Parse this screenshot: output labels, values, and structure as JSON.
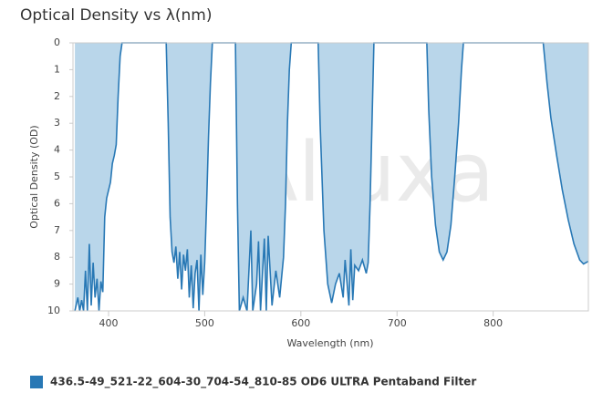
{
  "chart_data": {
    "type": "area",
    "title": "Optical Density vs λ(nm)",
    "x_label": "Wavelength (nm)",
    "y_label": "Optical Density (OD)",
    "watermark": "Alluxa",
    "xlim": [
      363,
      899
    ],
    "xticks": [
      400,
      500,
      600,
      700,
      800
    ],
    "ylim": [
      0,
      10
    ],
    "yticks": [
      0,
      1,
      2,
      3,
      4,
      5,
      6,
      7,
      8,
      9,
      10
    ],
    "y_reversed": true,
    "series": [
      {
        "name": "436.5-49_521-22_604-30_704-54_810-85 OD6 ULTRA Pentaband Filter",
        "color": "#2878b5",
        "fill": "#b9d6ea",
        "x": [
          365,
          368,
          370,
          372,
          374,
          376,
          378,
          380,
          382,
          384,
          386,
          388,
          390,
          392,
          394,
          396,
          398,
          400,
          402,
          404,
          406,
          408,
          410,
          412,
          414,
          460,
          462,
          464,
          466,
          468,
          470,
          472,
          474,
          476,
          478,
          480,
          482,
          484,
          486,
          488,
          490,
          492,
          494,
          496,
          498,
          500,
          502,
          504,
          506,
          508,
          532,
          534,
          536,
          540,
          544,
          548,
          550,
          554,
          556,
          558,
          562,
          564,
          566,
          570,
          574,
          578,
          582,
          584,
          586,
          588,
          590,
          618,
          620,
          624,
          628,
          632,
          636,
          640,
          644,
          646,
          650,
          652,
          654,
          656,
          660,
          664,
          668,
          670,
          672,
          674,
          676,
          731,
          733,
          736,
          740,
          744,
          748,
          752,
          756,
          760,
          764,
          767,
          769,
          852,
          856,
          860,
          866,
          872,
          878,
          884,
          890,
          894,
          899
        ],
        "values": [
          10,
          9.5,
          10,
          9.6,
          10,
          8.5,
          10,
          7.5,
          9.8,
          8.2,
          9.5,
          8.8,
          10,
          8.9,
          9.3,
          6.5,
          5.8,
          5.5,
          5.2,
          4.5,
          4.2,
          3.8,
          2,
          0.5,
          0,
          0,
          3,
          6.5,
          7.8,
          8.2,
          7.6,
          8.8,
          7.8,
          9.2,
          7.9,
          8.5,
          7.7,
          9.5,
          8.3,
          9.9,
          8.6,
          8.1,
          10,
          7.9,
          9.4,
          8.2,
          6,
          3.5,
          1.5,
          0,
          0,
          6,
          10,
          9.5,
          10,
          7,
          10,
          9,
          7.4,
          10,
          7.3,
          10,
          7.2,
          9.8,
          8.5,
          9.5,
          8,
          6,
          3,
          1,
          0,
          0,
          3,
          7,
          9,
          9.7,
          9,
          8.6,
          9.5,
          8.1,
          9.8,
          7.7,
          9.6,
          8.3,
          8.5,
          8.1,
          8.6,
          8.2,
          6,
          3,
          0,
          0,
          2.5,
          5,
          6.8,
          7.8,
          8.1,
          7.8,
          6.8,
          5,
          3,
          1,
          0,
          0,
          1.5,
          2.8,
          4.2,
          5.5,
          6.6,
          7.5,
          8.1,
          8.25,
          8.15
        ]
      }
    ]
  }
}
